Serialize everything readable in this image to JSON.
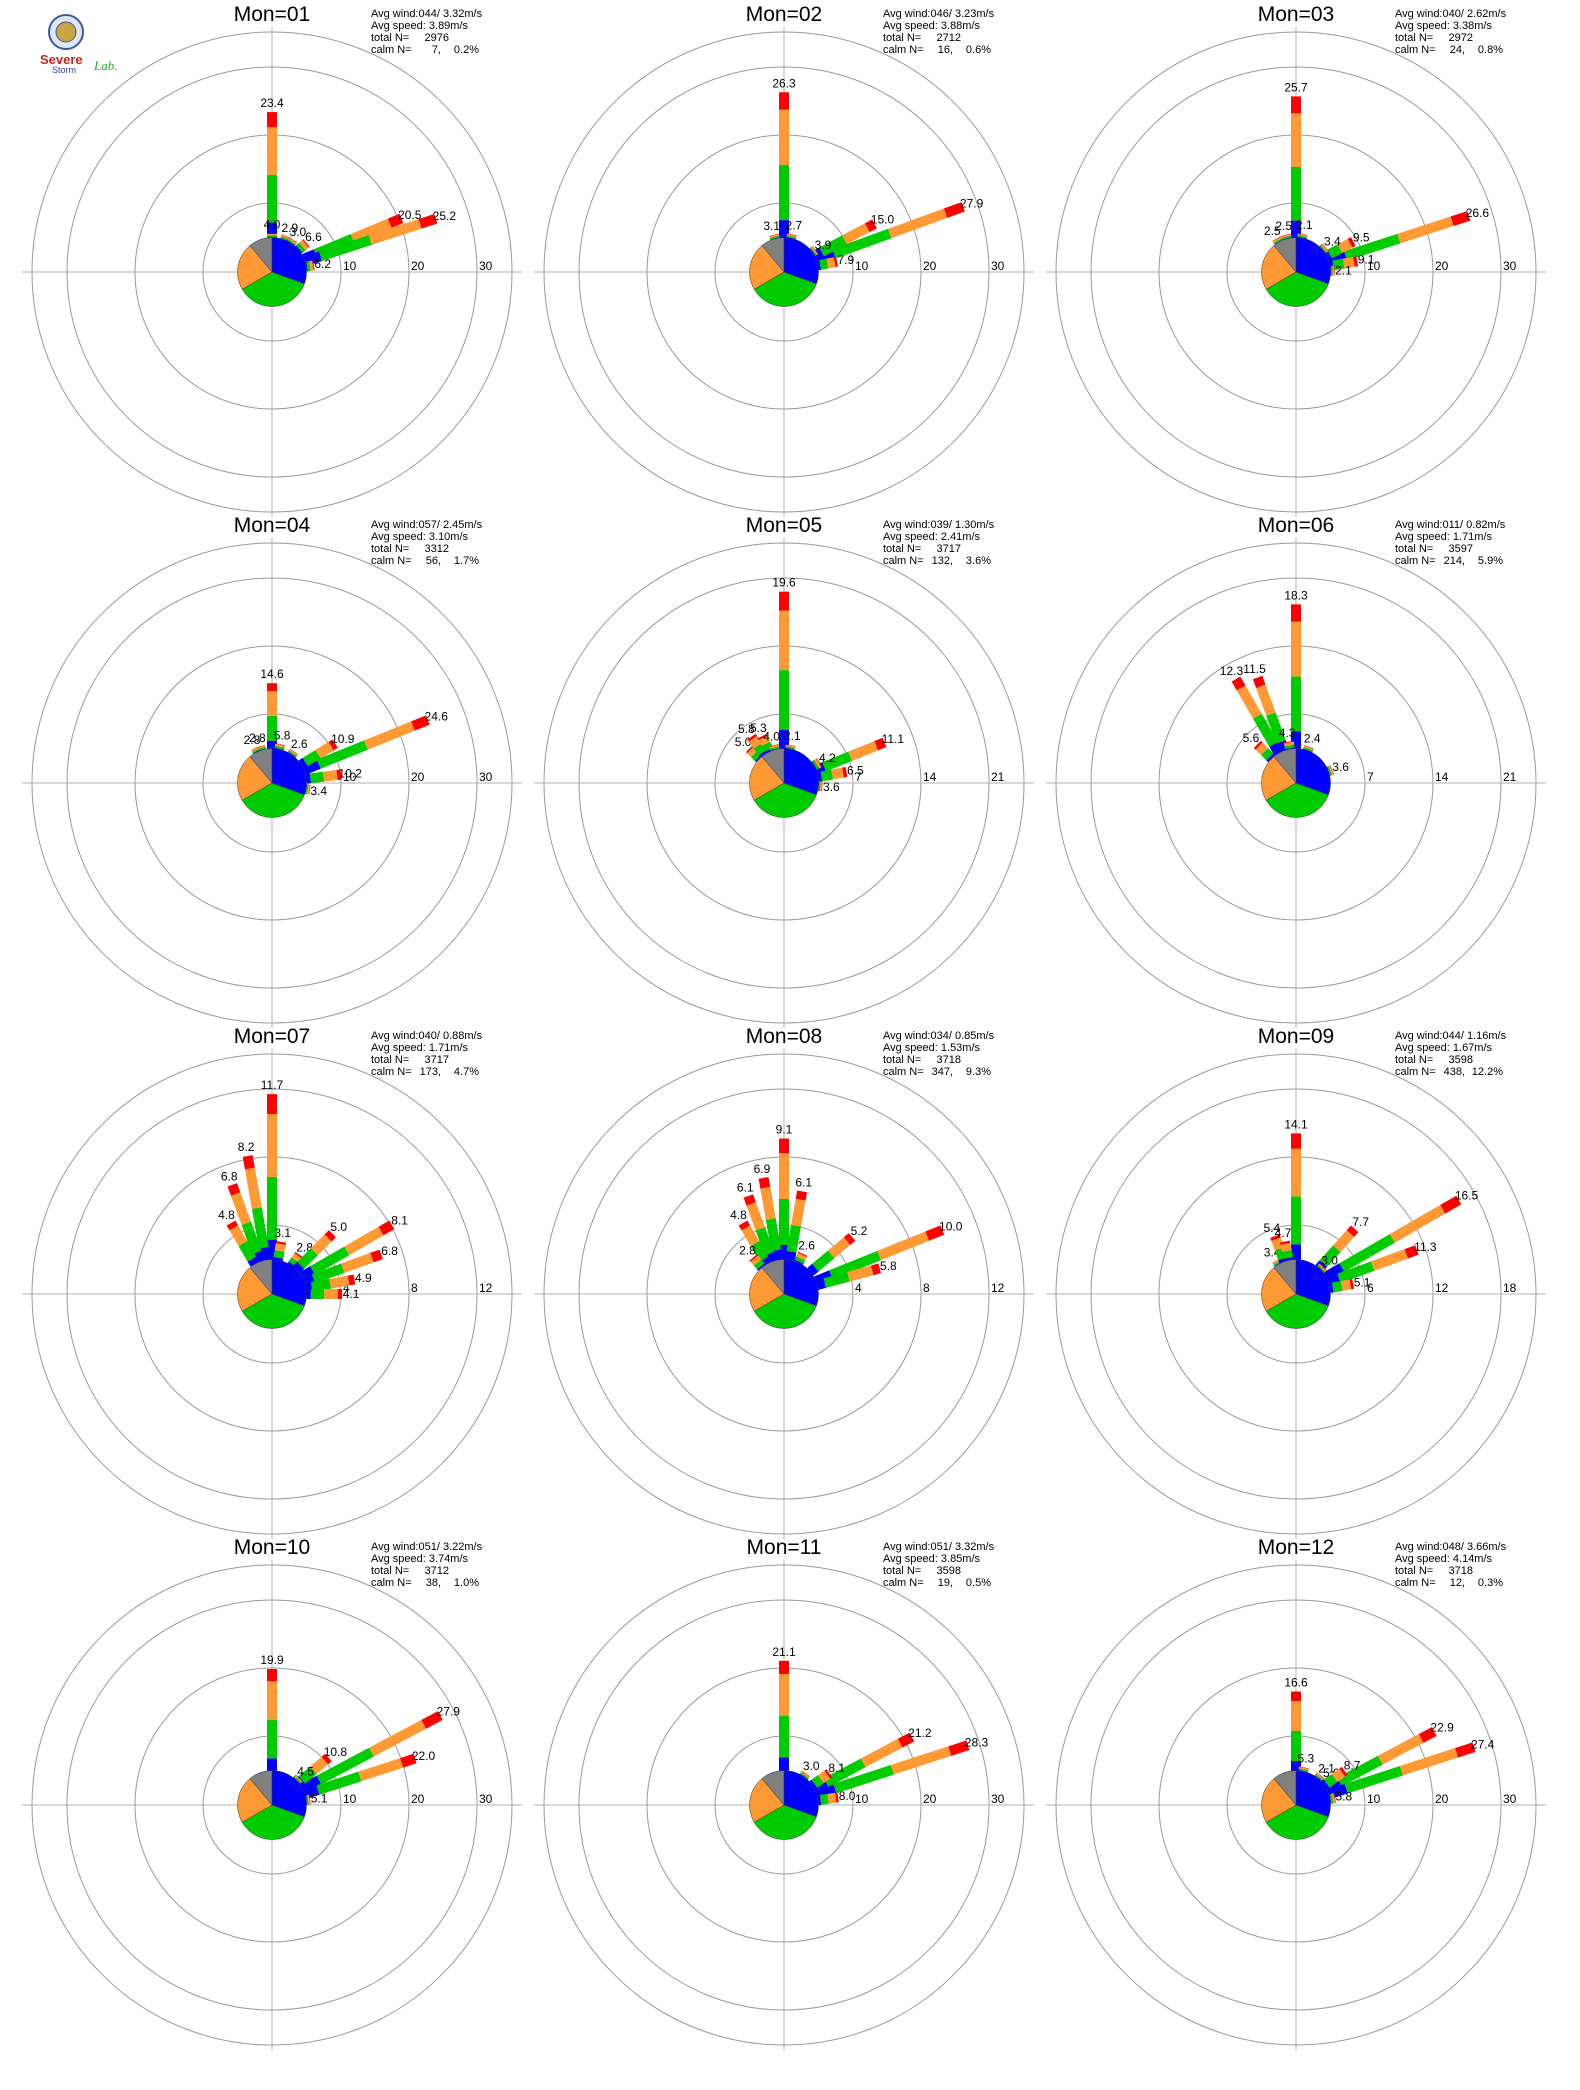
{
  "logo": {
    "text_line1": "Severe",
    "text_line2": "Storm",
    "text_line3": "Lab."
  },
  "colors": {
    "grey": "#808080",
    "blue": "#0000ff",
    "green": "#00cc00",
    "orange": "#ff9933",
    "red": "#ff0000",
    "magenta": "#cc00cc"
  },
  "chart_data": [
    {
      "type": "polar-bar",
      "title": "Mon=01",
      "rings": [
        10,
        20,
        30
      ],
      "stats": {
        "avg_wind": "Avg wind:044/ 3.32m/s",
        "avg_speed": "Avg speed: 3.89m/s",
        "total_n_label": "total N=",
        "total_n": "2976",
        "calm_n_label": "calm N=",
        "calm_n": "7,",
        "calm_pct": "0.2%"
      },
      "spokes": [
        {
          "dir": 0,
          "value": 23.4,
          "label": "23.4"
        },
        {
          "dir": 67.5,
          "value": 20.5,
          "label": "20.5"
        },
        {
          "dir": 72,
          "value": 25.2,
          "label": "25.2"
        },
        {
          "dir": 0,
          "value": 4.0,
          "label": "4.0"
        },
        {
          "dir": 22,
          "value": 2.9,
          "label": "2.9"
        },
        {
          "dir": 33,
          "value": 3.0,
          "label": "3.0"
        },
        {
          "dir": 50,
          "value": 6.6,
          "label": "6.6"
        },
        {
          "dir": 81,
          "value": 6.2,
          "label": "6.2"
        }
      ]
    },
    {
      "type": "polar-bar",
      "title": "Mon=02",
      "rings": [
        10,
        20,
        30
      ],
      "stats": {
        "avg_wind": "Avg wind:046/ 3.23m/s",
        "avg_speed": "Avg speed: 3.88m/s",
        "total_n_label": "total N=",
        "total_n": "2712",
        "calm_n_label": "calm N=",
        "calm_n": "16,",
        "calm_pct": "0.6%"
      },
      "spokes": [
        {
          "dir": 0,
          "value": 26.3,
          "label": "26.3"
        },
        {
          "dir": 70,
          "value": 27.9,
          "label": "27.9"
        },
        {
          "dir": 62,
          "value": 15.0,
          "label": "15.0"
        },
        {
          "dir": -15,
          "value": 3.1,
          "label": "3.1"
        },
        {
          "dir": 12,
          "value": 2.7,
          "label": "2.7"
        },
        {
          "dir": 55,
          "value": 3.9,
          "label": "3.9"
        },
        {
          "dir": 79,
          "value": 7.9,
          "label": "7.9"
        }
      ]
    },
    {
      "type": "polar-bar",
      "title": "Mon=03",
      "rings": [
        10,
        20,
        30
      ],
      "stats": {
        "avg_wind": "Avg wind:040/ 2.62m/s",
        "avg_speed": "Avg speed: 3.38m/s",
        "total_n_label": "total N=",
        "total_n": "2972",
        "calm_n_label": "calm N=",
        "calm_n": "24,",
        "calm_pct": "0.8%"
      },
      "spokes": [
        {
          "dir": 0,
          "value": 25.7,
          "label": "25.7"
        },
        {
          "dir": 72,
          "value": 26.6,
          "label": "26.6"
        },
        {
          "dir": 62,
          "value": 9.5,
          "label": "9.5"
        },
        {
          "dir": -30,
          "value": 2.5,
          "label": "2.5"
        },
        {
          "dir": -15,
          "value": 2.5,
          "label": "2.5"
        },
        {
          "dir": 10,
          "value": 2.1,
          "label": "2.1"
        },
        {
          "dir": 50,
          "value": 3.4,
          "label": "3.4"
        },
        {
          "dir": 80,
          "value": 9.1,
          "label": "9.1"
        },
        {
          "dir": 88,
          "value": 2.1,
          "label": "2.1"
        }
      ]
    },
    {
      "type": "polar-bar",
      "title": "Mon=04",
      "rings": [
        10,
        20,
        30
      ],
      "stats": {
        "avg_wind": "Avg wind:057/ 2.45m/s",
        "avg_speed": "Avg speed: 3.10m/s",
        "total_n_label": "total N=",
        "total_n": "3312",
        "calm_n_label": "calm N=",
        "calm_n": "56,",
        "calm_pct": "1.7%"
      },
      "spokes": [
        {
          "dir": 0,
          "value": 14.6,
          "label": "14.6"
        },
        {
          "dir": 68,
          "value": 24.6,
          "label": "24.6"
        },
        {
          "dir": 58,
          "value": 10.9,
          "label": "10.9"
        },
        {
          "dir": 12,
          "value": 5.8,
          "label": "5.8"
        },
        {
          "dir": -25,
          "value": 2.8,
          "label": "2.8"
        },
        {
          "dir": -18,
          "value": 2.8,
          "label": "2.8"
        },
        {
          "dir": 35,
          "value": 2.6,
          "label": "2.6"
        },
        {
          "dir": 83,
          "value": 10.2,
          "label": "10.2"
        },
        {
          "dir": 100,
          "value": 3.4,
          "label": "3.4"
        }
      ]
    },
    {
      "type": "polar-bar",
      "title": "Mon=05",
      "rings": [
        7,
        14,
        21
      ],
      "stats": {
        "avg_wind": "Avg wind:039/ 1.30m/s",
        "avg_speed": "Avg speed: 2.41m/s",
        "total_n_label": "total N=",
        "total_n": "3717",
        "calm_n_label": "calm N=",
        "calm_n": "132,",
        "calm_pct": "3.6%"
      },
      "spokes": [
        {
          "dir": 0,
          "value": 19.6,
          "label": "19.6"
        },
        {
          "dir": 68,
          "value": 11.1,
          "label": "11.1"
        },
        {
          "dir": -45,
          "value": 5.0,
          "label": "5.0"
        },
        {
          "dir": -35,
          "value": 5.8,
          "label": "5.8"
        },
        {
          "dir": -25,
          "value": 5.3,
          "label": "5.3"
        },
        {
          "dir": -15,
          "value": 4.0,
          "label": "4.0"
        },
        {
          "dir": 10,
          "value": 2.1,
          "label": "2.1"
        },
        {
          "dir": 60,
          "value": 4.2,
          "label": "4.2"
        },
        {
          "dir": 80,
          "value": 6.5,
          "label": "6.5"
        },
        {
          "dir": 95,
          "value": 3.6,
          "label": "3.6"
        }
      ]
    },
    {
      "type": "polar-bar",
      "title": "Mon=06",
      "rings": [
        7,
        14,
        21
      ],
      "stats": {
        "avg_wind": "Avg wind:011/ 0.82m/s",
        "avg_speed": "Avg speed: 1.71m/s",
        "total_n_label": "total N=",
        "total_n": "3597",
        "calm_n_label": "calm N=",
        "calm_n": "214,",
        "calm_pct": "5.9%"
      },
      "spokes": [
        {
          "dir": 0,
          "value": 18.3,
          "label": "18.3"
        },
        {
          "dir": -30,
          "value": 12.3,
          "label": "12.3"
        },
        {
          "dir": -20,
          "value": 11.5,
          "label": "11.5"
        },
        {
          "dir": -45,
          "value": 5.6,
          "label": "5.6"
        },
        {
          "dir": -10,
          "value": 4.3,
          "label": "4.3"
        },
        {
          "dir": 20,
          "value": 2.4,
          "label": "2.4"
        },
        {
          "dir": 70,
          "value": 3.6,
          "label": "3.6"
        }
      ]
    },
    {
      "type": "polar-bar",
      "title": "Mon=07",
      "rings": [
        4,
        8,
        12
      ],
      "stats": {
        "avg_wind": "Avg wind:040/ 0.88m/s",
        "avg_speed": "Avg speed: 1.71m/s",
        "total_n_label": "total N=",
        "total_n": "3717",
        "calm_n_label": "calm N=",
        "calm_n": "173,",
        "calm_pct": "4.7%"
      },
      "spokes": [
        {
          "dir": 0,
          "value": 11.7,
          "label": "11.7"
        },
        {
          "dir": -10,
          "value": 8.2,
          "label": "8.2"
        },
        {
          "dir": -20,
          "value": 6.8,
          "label": "6.8"
        },
        {
          "dir": -30,
          "value": 4.8,
          "label": "4.8"
        },
        {
          "dir": 10,
          "value": 3.1,
          "label": "3.1"
        },
        {
          "dir": 35,
          "value": 2.8,
          "label": "2.8"
        },
        {
          "dir": 45,
          "value": 5.0,
          "label": "5.0"
        },
        {
          "dir": 60,
          "value": 8.1,
          "label": "8.1"
        },
        {
          "dir": 70,
          "value": 6.8,
          "label": "6.8"
        },
        {
          "dir": 80,
          "value": 4.9,
          "label": "4.9"
        },
        {
          "dir": 90,
          "value": 4.1,
          "label": "4.1"
        }
      ]
    },
    {
      "type": "polar-bar",
      "title": "Mon=08",
      "rings": [
        4,
        8,
        12
      ],
      "stats": {
        "avg_wind": "Avg wind:034/ 0.85m/s",
        "avg_speed": "Avg speed: 1.53m/s",
        "total_n_label": "total N=",
        "total_n": "3718",
        "calm_n_label": "calm N=",
        "calm_n": "347,",
        "calm_pct": "9.3%"
      },
      "spokes": [
        {
          "dir": 0,
          "value": 9.1,
          "label": "9.1"
        },
        {
          "dir": 68,
          "value": 10.0,
          "label": "10.0"
        },
        {
          "dir": -10,
          "value": 6.9,
          "label": "6.9"
        },
        {
          "dir": -20,
          "value": 6.1,
          "label": "6.1"
        },
        {
          "dir": 10,
          "value": 6.1,
          "label": "6.1"
        },
        {
          "dir": -30,
          "value": 4.8,
          "label": "4.8"
        },
        {
          "dir": -40,
          "value": 2.8,
          "label": "2.8"
        },
        {
          "dir": 25,
          "value": 2.6,
          "label": "2.6"
        },
        {
          "dir": 50,
          "value": 5.2,
          "label": "5.2"
        },
        {
          "dir": 75,
          "value": 5.8,
          "label": "5.8"
        }
      ]
    },
    {
      "type": "polar-bar",
      "title": "Mon=09",
      "rings": [
        6,
        12,
        18
      ],
      "stats": {
        "avg_wind": "Avg wind:044/ 1.16m/s",
        "avg_speed": "Avg speed: 1.67m/s",
        "total_n_label": "total N=",
        "total_n": "3598",
        "calm_n_label": "calm N=",
        "calm_n": "438,",
        "calm_pct": "12.2%"
      },
      "spokes": [
        {
          "dir": 0,
          "value": 14.1,
          "label": "14.1"
        },
        {
          "dir": 60,
          "value": 16.5,
          "label": "16.5"
        },
        {
          "dir": 70,
          "value": 11.3,
          "label": "11.3"
        },
        {
          "dir": 42,
          "value": 7.7,
          "label": "7.7"
        },
        {
          "dir": -30,
          "value": 3.4,
          "label": "3.4"
        },
        {
          "dir": -20,
          "value": 5.4,
          "label": "5.4"
        },
        {
          "dir": -12,
          "value": 4.7,
          "label": "4.7"
        },
        {
          "dir": 45,
          "value": 3.0,
          "label": "3.0"
        },
        {
          "dir": 80,
          "value": 5.1,
          "label": "5.1"
        }
      ]
    },
    {
      "type": "polar-bar",
      "title": "Mon=10",
      "rings": [
        10,
        20,
        30
      ],
      "stats": {
        "avg_wind": "Avg wind:051/ 3.22m/s",
        "avg_speed": "Avg speed: 3.74m/s",
        "total_n_label": "total N=",
        "total_n": "3712",
        "calm_n_label": "calm N=",
        "calm_n": "38,",
        "calm_pct": "1.0%"
      },
      "spokes": [
        {
          "dir": 0,
          "value": 19.9,
          "label": "19.9"
        },
        {
          "dir": 62,
          "value": 27.9,
          "label": "27.9"
        },
        {
          "dir": 72,
          "value": 22.0,
          "label": "22.0"
        },
        {
          "dir": 50,
          "value": 10.8,
          "label": "10.8"
        },
        {
          "dir": 45,
          "value": 4.5,
          "label": "4.5"
        },
        {
          "dir": 82,
          "value": 5.1,
          "label": "5.1"
        }
      ]
    },
    {
      "type": "polar-bar",
      "title": "Mon=11",
      "rings": [
        10,
        20,
        30
      ],
      "stats": {
        "avg_wind": "Avg wind:051/ 3.32m/s",
        "avg_speed": "Avg speed: 3.85m/s",
        "total_n_label": "total N=",
        "total_n": "3598",
        "calm_n_label": "calm N=",
        "calm_n": "19,",
        "calm_pct": "0.5%"
      },
      "spokes": [
        {
          "dir": 0,
          "value": 21.1,
          "label": "21.1"
        },
        {
          "dir": 72,
          "value": 28.3,
          "label": "28.3"
        },
        {
          "dir": 62,
          "value": 21.2,
          "label": "21.2"
        },
        {
          "dir": 55,
          "value": 8.1,
          "label": "8.1"
        },
        {
          "dir": 35,
          "value": 3.0,
          "label": "3.0"
        },
        {
          "dir": 82,
          "value": 8.0,
          "label": "8.0"
        }
      ]
    },
    {
      "type": "polar-bar",
      "title": "Mon=12",
      "rings": [
        10,
        20,
        30
      ],
      "stats": {
        "avg_wind": "Avg wind:048/ 3.66m/s",
        "avg_speed": "Avg speed: 4.14m/s",
        "total_n_label": "total N=",
        "total_n": "3718",
        "calm_n_label": "calm N=",
        "calm_n": "12,",
        "calm_pct": "0.3%"
      },
      "spokes": [
        {
          "dir": 0,
          "value": 16.6,
          "label": "16.6"
        },
        {
          "dir": 62,
          "value": 22.9,
          "label": "22.9"
        },
        {
          "dir": 72,
          "value": 27.4,
          "label": "27.4"
        },
        {
          "dir": 12,
          "value": 5.3,
          "label": "5.3"
        },
        {
          "dir": 40,
          "value": 2.1,
          "label": "2.1"
        },
        {
          "dir": 48,
          "value": 5.0,
          "label": "5.0"
        },
        {
          "dir": 55,
          "value": 8.7,
          "label": "8.7"
        },
        {
          "dir": 80,
          "value": 5.8,
          "label": "5.8"
        }
      ]
    }
  ]
}
